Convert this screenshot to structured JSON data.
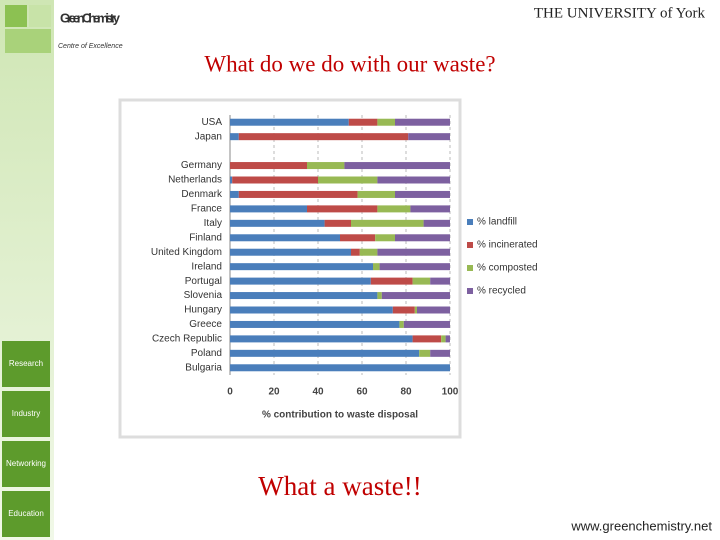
{
  "header": {
    "logo_title": "Green Chemistry",
    "logo_subtitle": "Centre of Excellence",
    "university": "THE UNIVERSITY of York"
  },
  "slide_title": "What do we do with our waste?",
  "nav": [
    "Research",
    "Industry",
    "Networking",
    "Education"
  ],
  "caption": "What a waste!!",
  "footer_url": "www.greenchemistry.net",
  "chart_data": {
    "type": "stacked-bar-horizontal",
    "x_label": "% contribution to waste disposal",
    "categories": [
      "USA",
      "Japan",
      null,
      "Germany",
      "Netherlands",
      "Denmark",
      "France",
      "Italy",
      "Finland",
      "United Kingdom",
      "Ireland",
      "Portugal",
      "Slovenia",
      "Hungary",
      "Greece",
      "Czech Republic",
      "Poland",
      "Bulgaria"
    ],
    "series": [
      {
        "name": "% landfill",
        "color": "#4a7ebb",
        "values": [
          54,
          4,
          null,
          0,
          1,
          4,
          35,
          43,
          50,
          55,
          65,
          64,
          67,
          74,
          77,
          83,
          86,
          100
        ]
      },
      {
        "name": "% incinerated",
        "color": "#be4b48",
        "values": [
          13,
          77,
          null,
          35,
          39,
          54,
          32,
          12,
          16,
          4,
          0,
          19,
          0,
          10,
          0,
          13,
          0,
          0
        ]
      },
      {
        "name": "% composted",
        "color": "#98b954",
        "values": [
          8,
          0,
          null,
          17,
          27,
          17,
          15,
          33,
          9,
          8,
          3,
          8,
          2,
          1,
          2,
          2,
          5,
          0
        ]
      },
      {
        "name": "% recycled",
        "color": "#7d60a0",
        "values": [
          25,
          19,
          null,
          48,
          33,
          25,
          18,
          12,
          25,
          33,
          32,
          9,
          31,
          15,
          21,
          2,
          9,
          0
        ]
      }
    ],
    "xlim": [
      0,
      100
    ],
    "xticks": [
      0,
      20,
      40,
      60,
      80,
      100
    ],
    "grid": true,
    "legend": "right"
  }
}
